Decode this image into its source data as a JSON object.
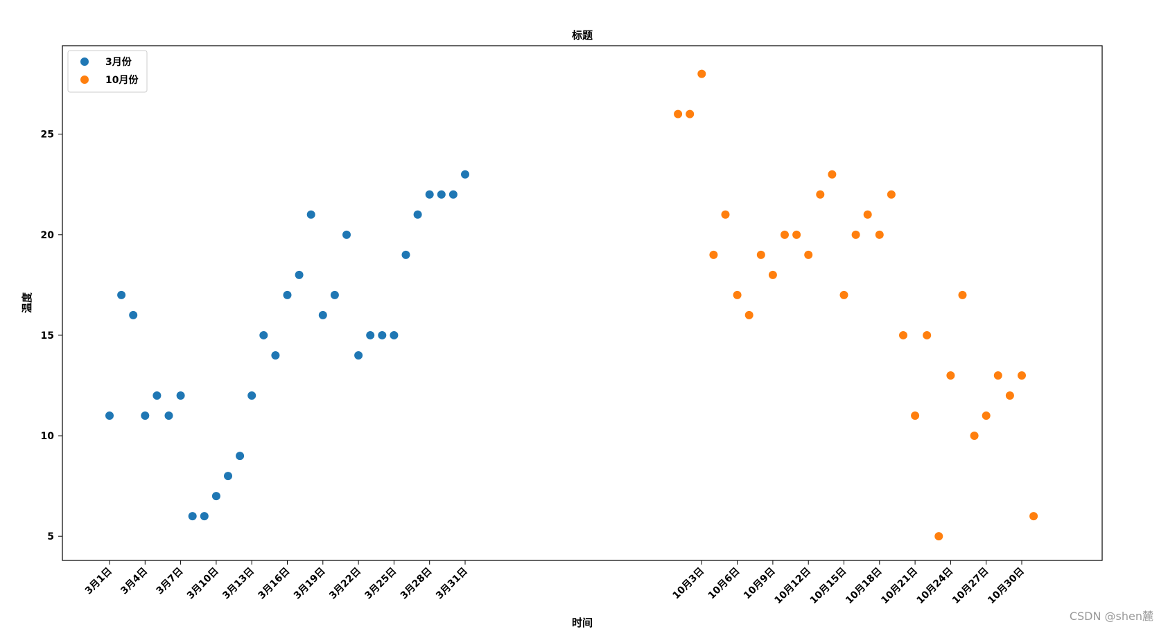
{
  "chart_data": {
    "type": "scatter",
    "title": "标题",
    "xlabel": "时间",
    "ylabel": "温度",
    "ylim": [
      3.8,
      29.4
    ],
    "yticks": [
      5,
      10,
      15,
      20,
      25
    ],
    "grid": false,
    "legend_position": "top-left",
    "x_ticklabels": [
      "3月1日",
      "3月4日",
      "3月7日",
      "3月10日",
      "3月13日",
      "3月16日",
      "3月19日",
      "3月22日",
      "3月25日",
      "3月28日",
      "3月31日",
      "10月3日",
      "10月6日",
      "10月9日",
      "10月12日",
      "10月15日",
      "10月18日",
      "10月21日",
      "10月24日",
      "10月27日",
      "10月30日"
    ],
    "series": [
      {
        "name": "3月份",
        "color": "#1f77b4",
        "x": [
          "3月1日",
          "3月2日",
          "3月3日",
          "3月4日",
          "3月5日",
          "3月6日",
          "3月7日",
          "3月8日",
          "3月9日",
          "3月10日",
          "3月11日",
          "3月12日",
          "3月13日",
          "3月14日",
          "3月15日",
          "3月16日",
          "3月17日",
          "3月18日",
          "3月19日",
          "3月20日",
          "3月21日",
          "3月22日",
          "3月23日",
          "3月24日",
          "3月25日",
          "3月26日",
          "3月27日",
          "3月28日",
          "3月29日",
          "3月30日",
          "3月31日"
        ],
        "y": [
          11,
          17,
          16,
          11,
          12,
          11,
          12,
          6,
          6,
          7,
          8,
          9,
          12,
          15,
          14,
          17,
          18,
          21,
          16,
          17,
          20,
          14,
          15,
          15,
          15,
          19,
          21,
          22,
          22,
          22,
          23
        ]
      },
      {
        "name": "10月份",
        "color": "#ff7f0e",
        "x": [
          "10月1日",
          "10月2日",
          "10月3日",
          "10月4日",
          "10月5日",
          "10月6日",
          "10月7日",
          "10月8日",
          "10月9日",
          "10月10日",
          "10月11日",
          "10月12日",
          "10月13日",
          "10月14日",
          "10月15日",
          "10月16日",
          "10月17日",
          "10月18日",
          "10月19日",
          "10月20日",
          "10月21日",
          "10月22日",
          "10月23日",
          "10月24日",
          "10月25日",
          "10月26日",
          "10月27日",
          "10月28日",
          "10月29日",
          "10月30日",
          "10月31日"
        ],
        "y": [
          26,
          26,
          28,
          19,
          21,
          17,
          16,
          19,
          18,
          20,
          20,
          19,
          22,
          23,
          17,
          20,
          21,
          20,
          22,
          15,
          11,
          15,
          5,
          13,
          17,
          10,
          11,
          13,
          12,
          13,
          6
        ]
      }
    ]
  },
  "watermark": "CSDN @shen麓"
}
